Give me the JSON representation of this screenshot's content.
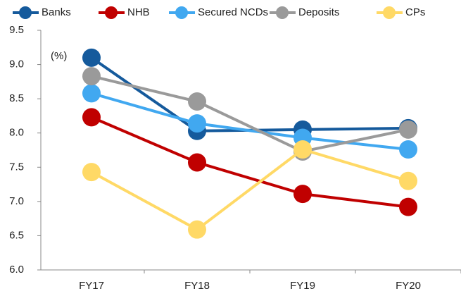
{
  "chart_data": {
    "type": "line",
    "annotation": "(%)",
    "categories": [
      "FY17",
      "FY18",
      "FY19",
      "FY20"
    ],
    "series": [
      {
        "name": "Banks",
        "color": "#155a9c",
        "values": [
          9.1,
          8.03,
          8.05,
          8.07
        ]
      },
      {
        "name": "NHB",
        "color": "#c00000",
        "values": [
          8.23,
          7.57,
          7.11,
          6.92
        ]
      },
      {
        "name": "Secured NCDs",
        "color": "#41a8f0",
        "values": [
          8.58,
          8.14,
          7.93,
          7.76
        ]
      },
      {
        "name": "Deposits",
        "color": "#9a9a9a",
        "values": [
          8.83,
          8.46,
          7.73,
          8.05
        ]
      },
      {
        "name": "CPs",
        "color": "#ffd966",
        "values": [
          7.43,
          6.59,
          7.76,
          7.3
        ]
      }
    ],
    "ylim": [
      6,
      9.5
    ],
    "yticks": [
      {
        "value": 6,
        "label": "6.0"
      },
      6.5,
      {
        "value": 7,
        "label": "7.0"
      },
      7.5,
      {
        "value": 8,
        "label": "8.0"
      },
      8.5,
      {
        "value": 9,
        "label": "9.0"
      },
      9.5
    ],
    "grid": false,
    "legend": "top"
  }
}
